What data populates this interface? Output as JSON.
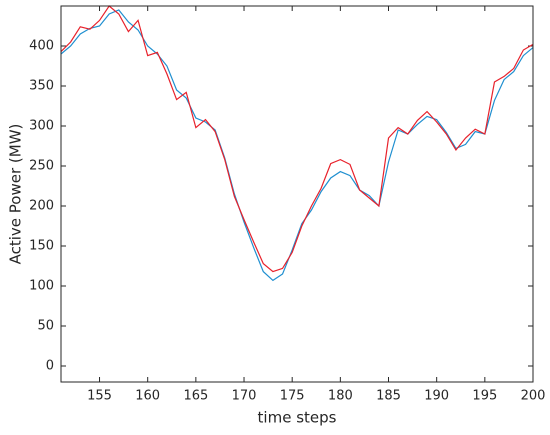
{
  "chart_data": {
    "type": "line",
    "xlabel": "time steps",
    "ylabel": "Active Power (MW)",
    "x": [
      151,
      152,
      153,
      154,
      155,
      156,
      157,
      158,
      159,
      160,
      161,
      162,
      163,
      164,
      165,
      166,
      167,
      168,
      169,
      170,
      171,
      172,
      173,
      174,
      175,
      176,
      177,
      178,
      179,
      180,
      181,
      182,
      183,
      184,
      185,
      186,
      187,
      188,
      189,
      190,
      191,
      192,
      193,
      194,
      195,
      196,
      197,
      198,
      199,
      200
    ],
    "series": [
      {
        "color": "#1f8fd0",
        "values": [
          390,
          400,
          415,
          422,
          425,
          440,
          445,
          430,
          420,
          400,
          390,
          375,
          345,
          335,
          310,
          305,
          295,
          260,
          215,
          180,
          148,
          118,
          107,
          115,
          145,
          178,
          195,
          218,
          235,
          243,
          238,
          220,
          213,
          200,
          255,
          295,
          290,
          302,
          312,
          308,
          292,
          272,
          277,
          293,
          290,
          332,
          358,
          368,
          388,
          398
        ]
      },
      {
        "color": "#e8212b",
        "values": [
          393,
          405,
          424,
          421,
          432,
          450,
          440,
          418,
          432,
          388,
          392,
          365,
          333,
          342,
          298,
          308,
          293,
          258,
          212,
          183,
          155,
          128,
          118,
          122,
          142,
          175,
          200,
          222,
          253,
          258,
          252,
          220,
          210,
          200,
          285,
          298,
          290,
          307,
          318,
          305,
          290,
          270,
          285,
          296,
          290,
          355,
          362,
          372,
          395,
          402
        ]
      }
    ],
    "xlim": [
      151,
      200
    ],
    "ylim": [
      -20,
      450
    ],
    "xticks": [
      155,
      160,
      165,
      170,
      175,
      180,
      185,
      190,
      195,
      200
    ],
    "yticks": [
      0,
      50,
      100,
      150,
      200,
      250,
      300,
      350,
      400
    ],
    "grid": false
  }
}
